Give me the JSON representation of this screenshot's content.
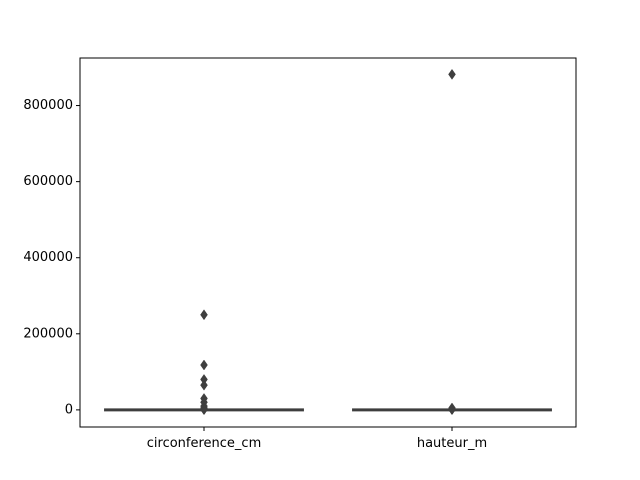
{
  "chart_data": {
    "type": "box",
    "title": "",
    "xlabel": "",
    "ylabel": "",
    "categories": [
      "circonference_cm",
      "hauteur_m"
    ],
    "ylim": [
      -45000,
      925000
    ],
    "yticks": [
      0,
      200000,
      400000,
      600000,
      800000
    ],
    "ytick_labels": [
      "0",
      "200000",
      "400000",
      "600000",
      "800000"
    ],
    "grid": false,
    "series": [
      {
        "category": "circonference_cm",
        "box": {
          "q1": 0,
          "median": 0,
          "q3": 0,
          "whisker_low": 0,
          "whisker_high": 0
        },
        "outliers": [
          250000,
          118000,
          80000,
          65000,
          30000,
          20000,
          10000,
          5000,
          2000,
          1000,
          500
        ]
      },
      {
        "category": "hauteur_m",
        "box": {
          "q1": 0,
          "median": 0,
          "q3": 0,
          "whisker_low": 0,
          "whisker_high": 0
        },
        "outliers": [
          882000,
          5000,
          2000,
          1000,
          500
        ]
      }
    ],
    "colors": {
      "box_edge": "#3f3f3f",
      "axis": "#000000",
      "background": "#ffffff"
    }
  }
}
